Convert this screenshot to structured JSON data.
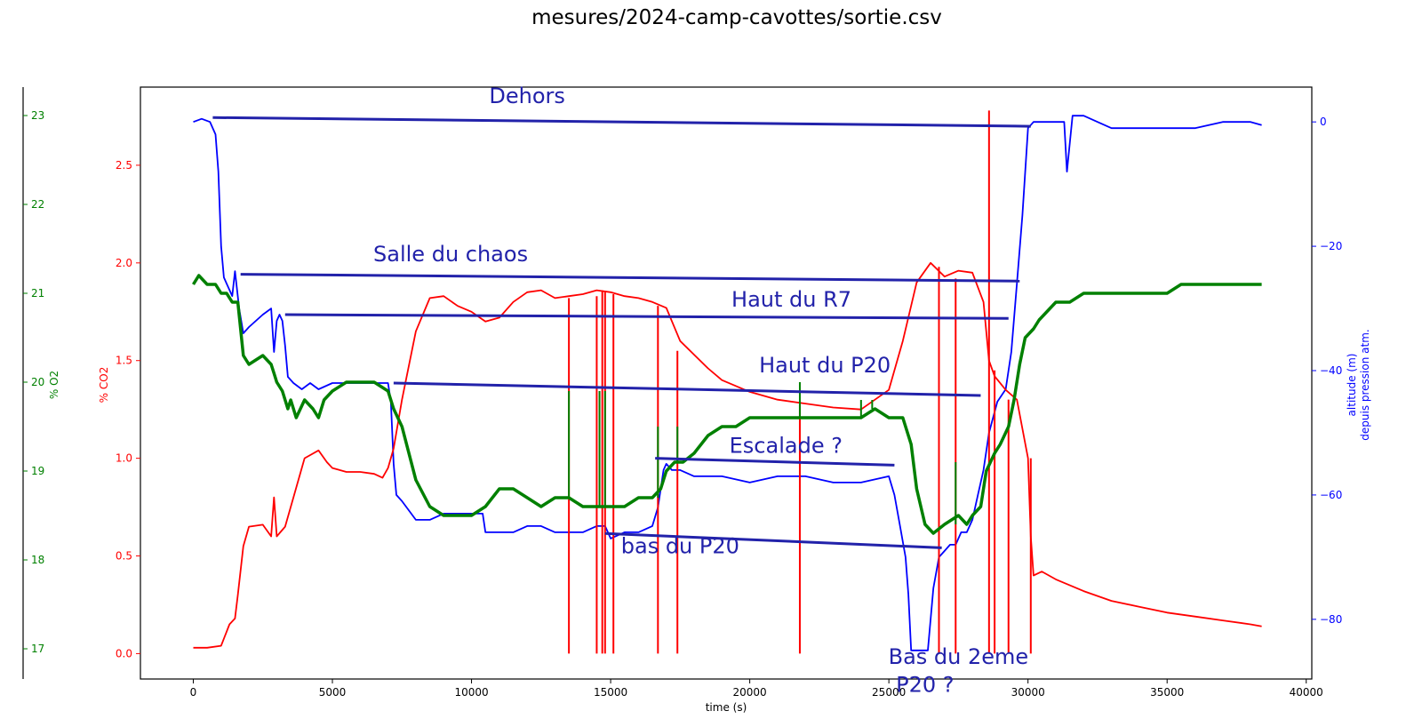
{
  "chart_data": {
    "type": "line",
    "title": "mesures/2024-camp-cavottes/sortie.csv",
    "xlabel": "time (s)",
    "xlim": [
      -1900,
      40200
    ],
    "xticks": [
      0,
      5000,
      10000,
      15000,
      20000,
      25000,
      30000,
      35000,
      40000
    ],
    "axes": {
      "co2": {
        "label": "% CO2",
        "color": "#ff0000",
        "ylim": [
          -0.13,
          2.9
        ],
        "ticks": [
          0.0,
          0.5,
          1.0,
          1.5,
          2.0,
          2.5
        ],
        "tick_labels": [
          "0.0",
          "0.5",
          "1.0",
          "1.5",
          "2.0",
          "2.5"
        ]
      },
      "o2": {
        "label": "% O2",
        "color": "#008000",
        "ylim": [
          16.66,
          23.32
        ],
        "ticks": [
          17,
          18,
          19,
          20,
          21,
          22,
          23
        ],
        "tick_labels": [
          "17",
          "18",
          "19",
          "20",
          "21",
          "22",
          "23"
        ]
      },
      "alt": {
        "label": "altitude (m)",
        "label2": "depuis pression atm.",
        "color": "#0000ff",
        "ylim": [
          -89.6,
          5.6
        ],
        "ticks": [
          0,
          -20,
          -40,
          -60,
          -80
        ],
        "tick_labels": [
          "0",
          "−20",
          "−40",
          "−60",
          "−80"
        ]
      }
    },
    "series": [
      {
        "axis": "alt",
        "x": [
          0,
          300,
          600,
          800,
          900,
          1000,
          1100,
          1200,
          1400,
          1500,
          1650,
          1800,
          2000,
          2500,
          2800,
          2900,
          3000,
          3100,
          3200,
          3300,
          3400,
          3600,
          3900,
          4200,
          4500,
          5000,
          5500,
          6000,
          6500,
          7000,
          7100,
          7200,
          7300,
          7500,
          8000,
          8500,
          9000,
          9500,
          10000,
          10400,
          10500,
          11000,
          11500,
          12000,
          12500,
          13000,
          13500,
          14000,
          14500,
          14800,
          15000,
          15500,
          16000,
          16500,
          16700,
          16900,
          17000,
          17200,
          17500,
          18000,
          19000,
          20000,
          21000,
          22000,
          23000,
          24000,
          25000,
          25200,
          25400,
          25600,
          25700,
          25800,
          26000,
          26400,
          26600,
          26800,
          27000,
          27200,
          27400,
          27600,
          27800,
          28000,
          28200,
          28400,
          28600,
          28900,
          29200,
          29400,
          29600,
          29800,
          30000,
          30200,
          30300,
          30500,
          31000,
          31300,
          31400,
          31600,
          32000,
          32500,
          33000,
          34000,
          35000,
          36000,
          37000,
          38000,
          38400
        ],
        "y": [
          0,
          0.5,
          0,
          -2,
          -8,
          -20,
          -25,
          -26,
          -28,
          -24,
          -30,
          -34,
          -33,
          -31,
          -30,
          -37,
          -32,
          -31,
          -32,
          -36,
          -41,
          -42,
          -43,
          -42,
          -43,
          -42,
          -42,
          -42,
          -42,
          -42,
          -45,
          -55,
          -60,
          -61,
          -64,
          -64,
          -63,
          -63,
          -63,
          -63,
          -66,
          -66,
          -66,
          -65,
          -65,
          -66,
          -66,
          -66,
          -65,
          -65,
          -67,
          -66,
          -66,
          -65,
          -62,
          -56,
          -55,
          -56,
          -56,
          -57,
          -57,
          -58,
          -57,
          -57,
          -58,
          -58,
          -57,
          -60,
          -65,
          -70,
          -76,
          -85,
          -85,
          -85,
          -75,
          -70,
          -69,
          -68,
          -68,
          -66,
          -66,
          -64,
          -60,
          -56,
          -50,
          -45,
          -43,
          -37,
          -26,
          -15,
          -1,
          0,
          0,
          0,
          0,
          0,
          -8,
          1,
          1,
          0,
          -1,
          -1,
          -1,
          -1,
          0,
          0,
          -0.5
        ]
      },
      {
        "axis": "co2",
        "x": [
          0,
          500,
          1000,
          1300,
          1500,
          1600,
          1800,
          2000,
          2500,
          2800,
          2900,
          3000,
          3300,
          3600,
          4000,
          4500,
          4800,
          5000,
          5500,
          6000,
          6500,
          6800,
          7000,
          7200,
          7500,
          8000,
          8500,
          9000,
          9500,
          10000,
          10300,
          10500,
          11000,
          11500,
          12000,
          12500,
          13000,
          13500,
          14000,
          14500,
          15000,
          15500,
          16000,
          16500,
          17000,
          17500,
          18000,
          18500,
          19000,
          20000,
          21000,
          22000,
          23000,
          24000,
          25000,
          25500,
          26000,
          26500,
          27000,
          27500,
          28000,
          28400,
          28600,
          28800,
          29200,
          29600,
          30000,
          30100,
          30200,
          30500,
          31000,
          32000,
          33000,
          34000,
          35000,
          36000,
          37000,
          38000,
          38400
        ],
        "y": [
          0.03,
          0.03,
          0.04,
          0.15,
          0.18,
          0.3,
          0.55,
          0.65,
          0.66,
          0.6,
          0.8,
          0.6,
          0.65,
          0.8,
          1.0,
          1.04,
          0.98,
          0.95,
          0.93,
          0.93,
          0.92,
          0.9,
          0.95,
          1.05,
          1.3,
          1.65,
          1.82,
          1.83,
          1.78,
          1.75,
          1.72,
          1.7,
          1.72,
          1.8,
          1.85,
          1.86,
          1.82,
          1.83,
          1.84,
          1.86,
          1.85,
          1.83,
          1.82,
          1.8,
          1.77,
          1.6,
          1.53,
          1.46,
          1.4,
          1.34,
          1.3,
          1.28,
          1.26,
          1.25,
          1.35,
          1.6,
          1.9,
          2.0,
          1.93,
          1.96,
          1.95,
          1.8,
          1.5,
          1.42,
          1.35,
          1.3,
          1.0,
          0.6,
          0.4,
          0.42,
          0.38,
          0.32,
          0.27,
          0.24,
          0.21,
          0.19,
          0.17,
          0.15,
          0.14
        ]
      },
      {
        "axis": "co2",
        "x": [
          13500,
          14500,
          14700,
          14800,
          15100,
          16700,
          17400,
          21800,
          26800,
          27400,
          28600,
          28800,
          29300,
          30100
        ],
        "y": [
          1.82,
          1.83,
          1.86,
          1.85,
          1.84,
          1.78,
          1.55,
          1.28,
          1.98,
          1.92,
          2.78,
          1.45,
          1.3,
          1.0
        ],
        "drop_to": 0.0
      },
      {
        "axis": "o2",
        "x": [
          0,
          200,
          500,
          800,
          1000,
          1200,
          1400,
          1600,
          1700,
          1800,
          2000,
          2500,
          2800,
          2900,
          3000,
          3200,
          3400,
          3500,
          3700,
          4000,
          4300,
          4500,
          4700,
          5000,
          5500,
          6000,
          6500,
          7000,
          7200,
          7500,
          8000,
          8500,
          9000,
          9500,
          10000,
          10500,
          11000,
          11500,
          12000,
          12500,
          13000,
          13500,
          14000,
          14500,
          15000,
          15500,
          16000,
          16500,
          16800,
          17000,
          17300,
          17600,
          18000,
          18500,
          19000,
          19500,
          20000,
          21000,
          22000,
          23000,
          24000,
          24500,
          25000,
          25500,
          25800,
          26000,
          26300,
          26600,
          27000,
          27500,
          27800,
          28000,
          28300,
          28500,
          28800,
          29000,
          29300,
          29500,
          29700,
          29900,
          30200,
          30400,
          30700,
          31000,
          31500,
          32000,
          33000,
          34000,
          35000,
          35500,
          36000,
          37000,
          38000,
          38400
        ],
        "y": [
          21.1,
          21.2,
          21.1,
          21.1,
          21.0,
          21.0,
          20.9,
          20.9,
          20.6,
          20.3,
          20.2,
          20.3,
          20.2,
          20.1,
          20.0,
          19.9,
          19.7,
          19.8,
          19.6,
          19.8,
          19.7,
          19.6,
          19.8,
          19.9,
          20.0,
          20.0,
          20.0,
          19.9,
          19.7,
          19.5,
          18.9,
          18.6,
          18.5,
          18.5,
          18.5,
          18.6,
          18.8,
          18.8,
          18.7,
          18.6,
          18.7,
          18.7,
          18.6,
          18.6,
          18.6,
          18.6,
          18.7,
          18.7,
          18.8,
          19.0,
          19.1,
          19.1,
          19.2,
          19.4,
          19.5,
          19.5,
          19.6,
          19.6,
          19.6,
          19.6,
          19.6,
          19.7,
          19.6,
          19.6,
          19.3,
          18.8,
          18.4,
          18.3,
          18.4,
          18.5,
          18.4,
          18.5,
          18.6,
          19.0,
          19.2,
          19.3,
          19.5,
          19.8,
          20.2,
          20.5,
          20.6,
          20.7,
          20.8,
          20.9,
          20.9,
          21.0,
          21.0,
          21.0,
          21.0,
          21.1,
          21.1,
          21.1,
          21.1,
          21.1
        ]
      },
      {
        "axis": "o2",
        "x": [
          13500,
          14600,
          14800,
          16700,
          17400,
          21800,
          24000,
          24400,
          27400
        ],
        "y": [
          18.7,
          18.6,
          18.6,
          18.7,
          19.1,
          19.6,
          19.6,
          19.7,
          18.4
        ],
        "spike_to": [
          19.9,
          19.9,
          19.9,
          19.5,
          19.5,
          20.0,
          19.8,
          19.8,
          19.1
        ]
      }
    ],
    "annotations": [
      {
        "text": "Dehors",
        "x": 12000,
        "alt": 3.0
      },
      {
        "text": "Salle du chaos",
        "x": 9250,
        "alt": -22.4
      },
      {
        "text": "Haut du R7",
        "x": 21500,
        "alt": -29.7
      },
      {
        "text": "Haut du P20",
        "x": 22700,
        "alt": -40.3
      },
      {
        "text": "Escalade ?",
        "x": 21300,
        "alt": -53.2
      },
      {
        "text": "bas du P20",
        "x": 17500,
        "alt": -69.4
      },
      {
        "text": "Bas du 2eme",
        "x": 27500,
        "alt": -87.2
      },
      {
        "text": "P20 ?",
        "x": 26300,
        "alt": -91.7
      }
    ],
    "guide_lines": [
      {
        "x1": 700,
        "y1": 0.7,
        "x2": 30100,
        "y2": -0.7
      },
      {
        "x1": 1700,
        "y1": -24.5,
        "x2": 29700,
        "y2": -25.6
      },
      {
        "x1": 3300,
        "y1": -31.0,
        "x2": 29300,
        "y2": -31.6
      },
      {
        "x1": 7200,
        "y1": -42.0,
        "x2": 28300,
        "y2": -44.0
      },
      {
        "x1": 16600,
        "y1": -54.1,
        "x2": 25200,
        "y2": -55.2
      },
      {
        "x1": 14800,
        "y1": -66.2,
        "x2": 26900,
        "y2": -68.5
      }
    ]
  }
}
